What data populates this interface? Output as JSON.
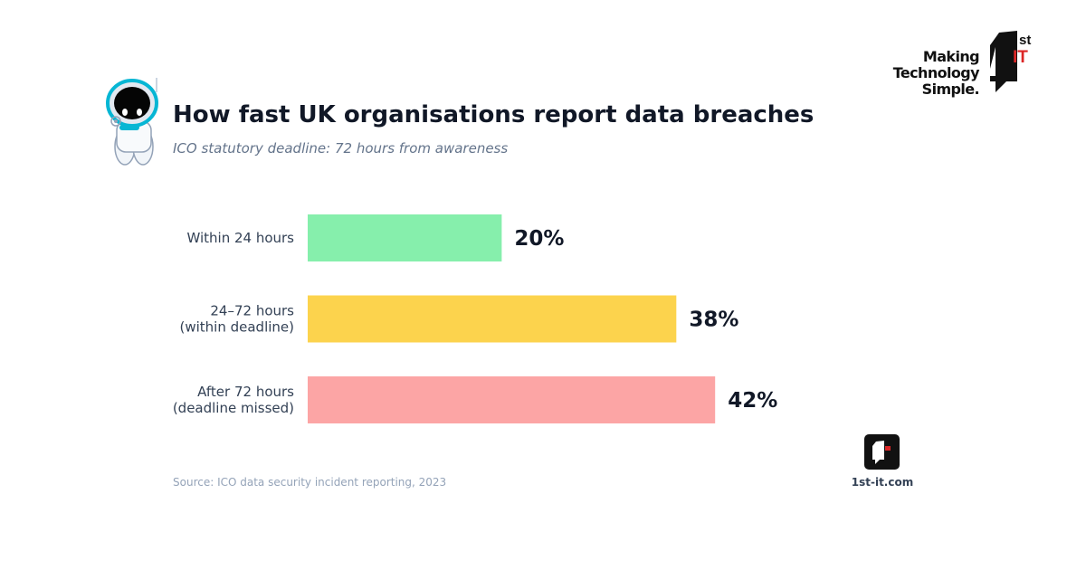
{
  "header": {
    "title": "How fast UK organisations report data breaches",
    "subtitle": "ICO statutory deadline: 72 hours from awareness"
  },
  "brand": {
    "tagline": [
      "Making",
      "Technology",
      "Simple."
    ],
    "mark_sup": "st",
    "mark_it": "IT",
    "website": "1st-it.com"
  },
  "footer": {
    "source": "Source: ICO data security incident reporting, 2023"
  },
  "colors": {
    "accent": "#dc2626",
    "text_dark": "#111827"
  },
  "chart_data": {
    "type": "bar",
    "orientation": "horizontal",
    "categories": [
      [
        "Within 24 hours"
      ],
      [
        "24–72 hours",
        "(within deadline)"
      ],
      [
        "After 72 hours",
        "(deadline missed)"
      ]
    ],
    "values": [
      20,
      38,
      42
    ],
    "value_labels": [
      "20%",
      "38%",
      "42%"
    ],
    "colors": [
      "#86efac",
      "#fcd34d",
      "#fca5a5"
    ],
    "xlim": [
      0,
      80
    ],
    "grid": false
  }
}
